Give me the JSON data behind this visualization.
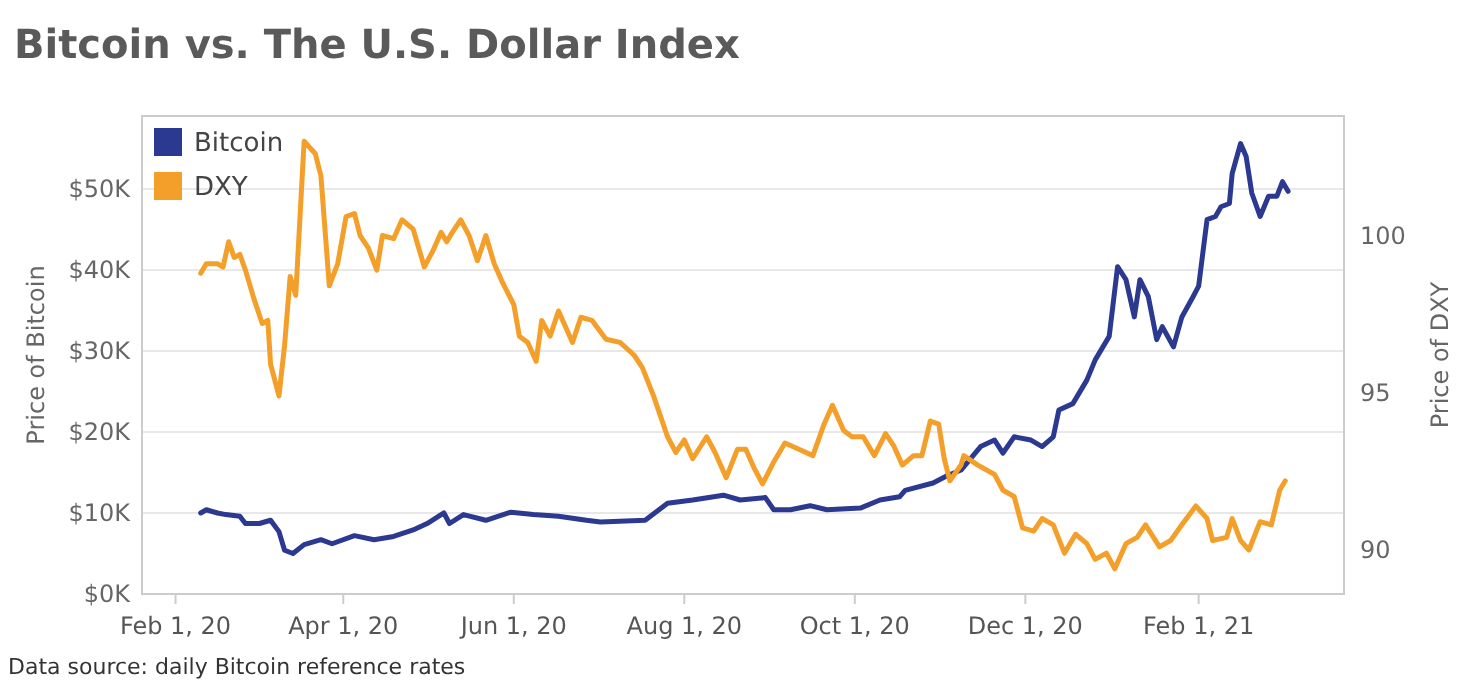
{
  "chart_data": {
    "type": "line",
    "title": "Bitcoin vs. The U.S. Dollar Index",
    "ylabel": "Price of Bitcoin",
    "y2label": "Price of DXY",
    "annotations": [
      "Data source: daily Bitcoin reference rates"
    ],
    "xlim": [
      "2020-01-20",
      "2021-03-25"
    ],
    "xticks": [
      {
        "value": "2020-02-01",
        "label": "Feb 1, 20"
      },
      {
        "value": "2020-04-01",
        "label": "Apr 1, 20"
      },
      {
        "value": "2020-06-01",
        "label": "Jun 1, 20"
      },
      {
        "value": "2020-08-01",
        "label": "Aug 1, 20"
      },
      {
        "value": "2020-10-01",
        "label": "Oct 1, 20"
      },
      {
        "value": "2020-12-01",
        "label": "Dec 1, 20"
      },
      {
        "value": "2021-02-01",
        "label": "Feb 1, 21"
      }
    ],
    "ylim": [
      0,
      59
    ],
    "yticks": [
      {
        "value": 0,
        "label": "$0K"
      },
      {
        "value": 10,
        "label": "$10K"
      },
      {
        "value": 20,
        "label": "$20K"
      },
      {
        "value": 30,
        "label": "$30K"
      },
      {
        "value": 40,
        "label": "$40K"
      },
      {
        "value": 50,
        "label": "$50K"
      }
    ],
    "y2lim": [
      88.6,
      103.8
    ],
    "y2ticks": [
      90,
      95,
      100
    ],
    "grid": "y",
    "legend": "top left",
    "line_style": "solid",
    "series": [
      {
        "name": "Bitcoin",
        "color": "#2b3990",
        "x": [
          "2020-02-10",
          "2020-02-12",
          "2020-02-16",
          "2020-02-19",
          "2020-02-24",
          "2020-02-26",
          "2020-03-02",
          "2020-03-06",
          "2020-03-09",
          "2020-03-11",
          "2020-03-14",
          "2020-03-18",
          "2020-03-24",
          "2020-03-28",
          "2020-04-05",
          "2020-04-12",
          "2020-04-19",
          "2020-04-26",
          "2020-05-01",
          "2020-05-07",
          "2020-05-09",
          "2020-05-14",
          "2020-05-22",
          "2020-05-31",
          "2020-06-08",
          "2020-06-17",
          "2020-06-27",
          "2020-07-02",
          "2020-07-18",
          "2020-07-26",
          "2020-08-04",
          "2020-08-15",
          "2020-08-21",
          "2020-08-30",
          "2020-09-02",
          "2020-09-08",
          "2020-09-15",
          "2020-09-21",
          "2020-10-03",
          "2020-10-10",
          "2020-10-17",
          "2020-10-19",
          "2020-10-29",
          "2020-11-03",
          "2020-11-08",
          "2020-11-15",
          "2020-11-20",
          "2020-11-23",
          "2020-11-27",
          "2020-12-03",
          "2020-12-07",
          "2020-12-11",
          "2020-12-13",
          "2020-12-18",
          "2020-12-23",
          "2020-12-26",
          "2020-12-31",
          "2021-01-03",
          "2021-01-06",
          "2021-01-09",
          "2021-01-11",
          "2021-01-14",
          "2021-01-17",
          "2021-01-19",
          "2021-01-23",
          "2021-01-26",
          "2021-01-30",
          "2021-02-01",
          "2021-02-04",
          "2021-02-07",
          "2021-02-09",
          "2021-02-12",
          "2021-02-13",
          "2021-02-16",
          "2021-02-18",
          "2021-02-20",
          "2021-02-23",
          "2021-02-26",
          "2021-03-01",
          "2021-03-03",
          "2021-03-05"
        ],
        "values": [
          10.0,
          10.4,
          10.0,
          9.8,
          9.6,
          8.7,
          8.7,
          9.1,
          7.7,
          5.4,
          5.0,
          6.1,
          6.7,
          6.2,
          7.2,
          6.7,
          7.1,
          7.9,
          8.7,
          10.0,
          8.7,
          9.8,
          9.1,
          10.1,
          9.8,
          9.6,
          9.1,
          8.9,
          9.1,
          11.2,
          11.6,
          12.2,
          11.6,
          11.9,
          10.4,
          10.4,
          10.9,
          10.4,
          10.6,
          11.6,
          12.0,
          12.8,
          13.7,
          14.6,
          15.3,
          18.2,
          19.0,
          17.4,
          19.4,
          19.0,
          18.2,
          19.4,
          22.7,
          23.5,
          26.4,
          28.9,
          31.8,
          40.4,
          38.8,
          34.2,
          38.8,
          36.7,
          31.4,
          33.0,
          30.5,
          34.2,
          36.7,
          38.0,
          46.2,
          46.6,
          47.8,
          48.2,
          51.9,
          55.6,
          54.0,
          49.5,
          46.6,
          49.1,
          49.1,
          50.9,
          49.7
        ]
      },
      {
        "name": "DXY",
        "color": "#f49f2a",
        "axis": "y2",
        "x": [
          "2020-02-10",
          "2020-02-12",
          "2020-02-16",
          "2020-02-18",
          "2020-02-20",
          "2020-02-22",
          "2020-02-24",
          "2020-02-26",
          "2020-02-29",
          "2020-03-03",
          "2020-03-05",
          "2020-03-06",
          "2020-03-09",
          "2020-03-11",
          "2020-03-13",
          "2020-03-15",
          "2020-03-18",
          "2020-03-22",
          "2020-03-24",
          "2020-03-27",
          "2020-03-30",
          "2020-04-02",
          "2020-04-05",
          "2020-04-07",
          "2020-04-10",
          "2020-04-13",
          "2020-04-15",
          "2020-04-19",
          "2020-04-22",
          "2020-04-26",
          "2020-04-30",
          "2020-05-03",
          "2020-05-06",
          "2020-05-08",
          "2020-05-10",
          "2020-05-13",
          "2020-05-16",
          "2020-05-19",
          "2020-05-22",
          "2020-05-25",
          "2020-05-28",
          "2020-06-01",
          "2020-06-03",
          "2020-06-06",
          "2020-06-09",
          "2020-06-11",
          "2020-06-14",
          "2020-06-17",
          "2020-06-22",
          "2020-06-25",
          "2020-06-29",
          "2020-07-04",
          "2020-07-09",
          "2020-07-14",
          "2020-07-17",
          "2020-07-21",
          "2020-07-26",
          "2020-07-29",
          "2020-08-01",
          "2020-08-04",
          "2020-08-09",
          "2020-08-12",
          "2020-08-16",
          "2020-08-20",
          "2020-08-23",
          "2020-08-26",
          "2020-08-29",
          "2020-09-02",
          "2020-09-06",
          "2020-09-11",
          "2020-09-16",
          "2020-09-20",
          "2020-09-23",
          "2020-09-27",
          "2020-09-30",
          "2020-10-04",
          "2020-10-08",
          "2020-10-12",
          "2020-10-15",
          "2020-10-18",
          "2020-10-22",
          "2020-10-25",
          "2020-10-28",
          "2020-10-31",
          "2020-11-02",
          "2020-11-04",
          "2020-11-08",
          "2020-11-09",
          "2020-11-14",
          "2020-11-20",
          "2020-11-23",
          "2020-11-27",
          "2020-11-30",
          "2020-12-04",
          "2020-12-07",
          "2020-12-11",
          "2020-12-15",
          "2020-12-19",
          "2020-12-23",
          "2020-12-26",
          "2020-12-30",
          "2021-01-02",
          "2021-01-06",
          "2021-01-10",
          "2021-01-13",
          "2021-01-18",
          "2021-01-22",
          "2021-01-26",
          "2021-01-31",
          "2021-02-04",
          "2021-02-06",
          "2021-02-11",
          "2021-02-13",
          "2021-02-16",
          "2021-02-19",
          "2021-02-23",
          "2021-02-27",
          "2021-03-02",
          "2021-03-04"
        ],
        "values": [
          98.8,
          99.1,
          99.1,
          99.0,
          99.8,
          99.3,
          99.4,
          98.9,
          98.0,
          97.2,
          97.3,
          95.9,
          94.9,
          96.5,
          98.7,
          98.1,
          103.0,
          102.6,
          101.9,
          98.4,
          99.1,
          100.6,
          100.7,
          100.0,
          99.6,
          98.9,
          100.0,
          99.9,
          100.5,
          100.2,
          99.0,
          99.5,
          100.1,
          99.8,
          100.1,
          100.5,
          100.0,
          99.2,
          100.0,
          99.1,
          98.5,
          97.8,
          96.8,
          96.6,
          96.0,
          97.3,
          96.8,
          97.6,
          96.6,
          97.4,
          97.3,
          96.7,
          96.6,
          96.2,
          95.8,
          94.9,
          93.6,
          93.1,
          93.5,
          92.9,
          93.6,
          93.1,
          92.3,
          93.2,
          93.2,
          92.6,
          92.1,
          92.8,
          93.4,
          93.2,
          93.0,
          94.0,
          94.6,
          93.8,
          93.6,
          93.6,
          93.0,
          93.7,
          93.3,
          92.7,
          93.0,
          93.0,
          94.1,
          94.0,
          92.9,
          92.2,
          92.7,
          93.0,
          92.7,
          92.4,
          91.9,
          91.7,
          90.7,
          90.6,
          91.0,
          90.8,
          89.9,
          90.5,
          90.2,
          89.7,
          89.9,
          89.4,
          90.2,
          90.4,
          90.8,
          90.1,
          90.3,
          90.8,
          91.4,
          91.0,
          90.3,
          90.4,
          91.0,
          90.3,
          90.0,
          90.9,
          90.8,
          91.9,
          92.2
        ]
      }
    ]
  }
}
